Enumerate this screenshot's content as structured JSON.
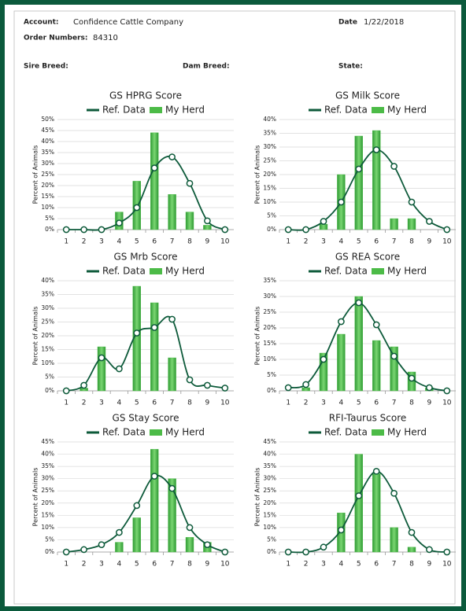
{
  "header": {
    "account_label": "Account:",
    "account": "Confidence Cattle Company",
    "date_label": "Date",
    "date": "1/22/2018",
    "order_label": "Order Numbers:",
    "order": "84310",
    "sire_label": "Sire Breed:",
    "dam_label": "Dam Breed:",
    "state_label": "State:"
  },
  "chart_data": [
    {
      "type": "combo",
      "title": "GS HPRG Score",
      "ylabel": "Percent of Animals",
      "grid": true,
      "categories": [
        "1",
        "2",
        "3",
        "4",
        "5",
        "6",
        "7",
        "8",
        "9",
        "10"
      ],
      "series": [
        {
          "name": "Ref. Data",
          "kind": "line",
          "color": "#0d5a3a",
          "values": [
            0,
            0,
            0,
            3,
            10,
            28,
            33,
            21,
            4,
            0
          ]
        },
        {
          "name": "My Herd",
          "kind": "bar",
          "color": "#4cbb47",
          "values": [
            0,
            0,
            0,
            8,
            22,
            44,
            16,
            8,
            2,
            0
          ]
        }
      ],
      "ylim": [
        0,
        50
      ],
      "yticks": [
        {
          "value": 0,
          "label": "0%"
        },
        {
          "value": 5,
          "label": "5%"
        },
        {
          "value": 10,
          "label": "10%"
        },
        {
          "value": 15,
          "label": "15%"
        },
        {
          "value": 20,
          "label": "20%"
        },
        {
          "value": 25,
          "label": "25%"
        },
        {
          "value": 30,
          "label": "30%"
        },
        {
          "value": 35,
          "label": "35%"
        },
        {
          "value": 40,
          "label": "40%"
        },
        {
          "value": 45,
          "label": "45%"
        },
        {
          "value": 50,
          "label": "50%"
        }
      ]
    },
    {
      "type": "combo",
      "title": "GS Milk Score",
      "ylabel": "Percent of Animals",
      "grid": true,
      "categories": [
        "1",
        "2",
        "3",
        "4",
        "5",
        "6",
        "7",
        "8",
        "9",
        "10"
      ],
      "series": [
        {
          "name": "Ref. Data",
          "kind": "line",
          "color": "#0d5a3a",
          "values": [
            0,
            0,
            3,
            10,
            22,
            29,
            23,
            10,
            3,
            0
          ]
        },
        {
          "name": "My Herd",
          "kind": "bar",
          "color": "#4cbb47",
          "values": [
            0,
            0,
            2,
            20,
            34,
            36,
            4,
            4,
            0,
            0
          ]
        }
      ],
      "ylim": [
        0,
        40
      ],
      "yticks": [
        {
          "value": 0,
          "label": "0%"
        },
        {
          "value": 5,
          "label": "5%"
        },
        {
          "value": 10,
          "label": "10%"
        },
        {
          "value": 15,
          "label": "15%"
        },
        {
          "value": 20,
          "label": "20%"
        },
        {
          "value": 25,
          "label": "25%"
        },
        {
          "value": 30,
          "label": "30%"
        },
        {
          "value": 35,
          "label": "35%"
        },
        {
          "value": 40,
          "label": "40%"
        }
      ]
    },
    {
      "type": "combo",
      "title": "GS Mrb Score",
      "ylabel": "Percent of Animals",
      "grid": true,
      "categories": [
        "1",
        "2",
        "3",
        "4",
        "5",
        "6",
        "7",
        "8",
        "9",
        "10"
      ],
      "series": [
        {
          "name": "Ref. Data",
          "kind": "line",
          "color": "#0d5a3a",
          "values": [
            0,
            2,
            12,
            8,
            21,
            23,
            26,
            4,
            2,
            1
          ]
        },
        {
          "name": "My Herd",
          "kind": "bar",
          "color": "#4cbb47",
          "values": [
            0,
            1,
            16,
            0,
            38,
            32,
            12,
            0,
            0,
            0
          ]
        }
      ],
      "ylim": [
        0,
        40
      ],
      "yticks": [
        {
          "value": 0,
          "label": "0%"
        },
        {
          "value": 5,
          "label": "5%"
        },
        {
          "value": 10,
          "label": "10%"
        },
        {
          "value": 15,
          "label": "15%"
        },
        {
          "value": 20,
          "label": "20%"
        },
        {
          "value": 25,
          "label": "25%"
        },
        {
          "value": 30,
          "label": "30%"
        },
        {
          "value": 35,
          "label": "35%"
        },
        {
          "value": 40,
          "label": "40%"
        }
      ]
    },
    {
      "type": "combo",
      "title": "GS REA Score",
      "ylabel": "Percent of Animals",
      "grid": true,
      "categories": [
        "1",
        "2",
        "3",
        "4",
        "5",
        "6",
        "7",
        "8",
        "9",
        "10"
      ],
      "series": [
        {
          "name": "Ref. Data",
          "kind": "line",
          "color": "#0d5a3a",
          "values": [
            1,
            2,
            10,
            22,
            28,
            21,
            11,
            4,
            1,
            0
          ]
        },
        {
          "name": "My Herd",
          "kind": "bar",
          "color": "#4cbb47",
          "values": [
            0,
            1,
            12,
            18,
            30,
            16,
            14,
            6,
            1,
            0
          ]
        }
      ],
      "ylim": [
        0,
        35
      ],
      "yticks": [
        {
          "value": 0,
          "label": "0%"
        },
        {
          "value": 5,
          "label": "5%"
        },
        {
          "value": 10,
          "label": "10%"
        },
        {
          "value": 15,
          "label": "15%"
        },
        {
          "value": 20,
          "label": "20%"
        },
        {
          "value": 25,
          "label": "25%"
        },
        {
          "value": 30,
          "label": "30%"
        },
        {
          "value": 35,
          "label": "35%"
        }
      ]
    },
    {
      "type": "combo",
      "title": "GS Stay Score",
      "ylabel": "Percent of Animals",
      "grid": true,
      "categories": [
        "1",
        "2",
        "3",
        "4",
        "5",
        "6",
        "7",
        "8",
        "9",
        "10"
      ],
      "series": [
        {
          "name": "Ref. Data",
          "kind": "line",
          "color": "#0d5a3a",
          "values": [
            0,
            1,
            3,
            8,
            19,
            31,
            26,
            10,
            3,
            0
          ]
        },
        {
          "name": "My Herd",
          "kind": "bar",
          "color": "#4cbb47",
          "values": [
            0,
            0,
            0,
            4,
            14,
            42,
            30,
            6,
            4,
            0
          ]
        }
      ],
      "ylim": [
        0,
        45
      ],
      "yticks": [
        {
          "value": 0,
          "label": "0%"
        },
        {
          "value": 5,
          "label": "5%"
        },
        {
          "value": 10,
          "label": "10%"
        },
        {
          "value": 15,
          "label": "15%"
        },
        {
          "value": 20,
          "label": "20%"
        },
        {
          "value": 25,
          "label": "25%"
        },
        {
          "value": 30,
          "label": "30%"
        },
        {
          "value": 35,
          "label": "35%"
        },
        {
          "value": 40,
          "label": "40%"
        },
        {
          "value": 45,
          "label": "45%"
        }
      ]
    },
    {
      "type": "combo",
      "title": "RFI-Taurus Score",
      "ylabel": "Percent of Animals",
      "grid": true,
      "categories": [
        "1",
        "2",
        "3",
        "4",
        "5",
        "6",
        "7",
        "8",
        "9",
        "10"
      ],
      "series": [
        {
          "name": "Ref. Data",
          "kind": "line",
          "color": "#0d5a3a",
          "values": [
            0,
            0,
            2,
            9,
            23,
            33,
            24,
            8,
            1,
            0
          ]
        },
        {
          "name": "My Herd",
          "kind": "bar",
          "color": "#4cbb47",
          "values": [
            0,
            0,
            0,
            16,
            40,
            32,
            10,
            2,
            0,
            0
          ]
        }
      ],
      "ylim": [
        0,
        45
      ],
      "yticks": [
        {
          "value": 0,
          "label": "0%"
        },
        {
          "value": 5,
          "label": "5%"
        },
        {
          "value": 10,
          "label": "10%"
        },
        {
          "value": 15,
          "label": "15%"
        },
        {
          "value": 20,
          "label": "20%"
        },
        {
          "value": 25,
          "label": "25%"
        },
        {
          "value": 30,
          "label": "30%"
        },
        {
          "value": 35,
          "label": "35%"
        },
        {
          "value": 40,
          "label": "40%"
        },
        {
          "value": 45,
          "label": "45%"
        }
      ]
    }
  ]
}
